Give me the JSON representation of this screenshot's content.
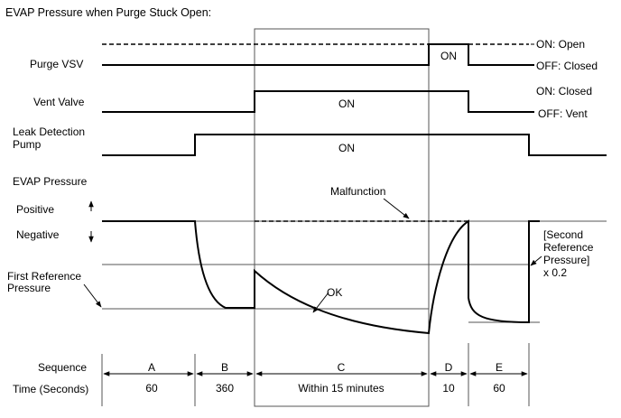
{
  "title": "EVAP Pressure when Purge Stuck Open:",
  "signals": {
    "purge_vsv": {
      "label": "Purge VSV",
      "on_text": "ON",
      "state_high": "ON: Open",
      "state_low": "OFF: Closed"
    },
    "vent_valve": {
      "label": "Vent Valve",
      "on_text": "ON",
      "state_high": "ON: Closed",
      "state_low": "OFF: Vent"
    },
    "leak_pump": {
      "label_line1": "Leak Detection",
      "label_line2": "Pump",
      "on_text": "ON"
    }
  },
  "evap": {
    "label": "EVAP Pressure",
    "positive": "Positive",
    "negative": "Negative",
    "first_ref_line1": "First Reference",
    "first_ref_line2": "Pressure",
    "malfunction": "Malfunction",
    "ok": "OK",
    "second_ref_line1": "[Second",
    "second_ref_line2": "Reference",
    "second_ref_line3": "Pressure]",
    "second_ref_line4": "x 0.2"
  },
  "sequence": {
    "label": "Sequence",
    "time_label": "Time (Seconds)",
    "steps": [
      {
        "name": "A",
        "time": "60"
      },
      {
        "name": "B",
        "time": "360"
      },
      {
        "name": "C",
        "time": "Within 15 minutes"
      },
      {
        "name": "D",
        "time": "10"
      },
      {
        "name": "E",
        "time": "60"
      }
    ]
  }
}
